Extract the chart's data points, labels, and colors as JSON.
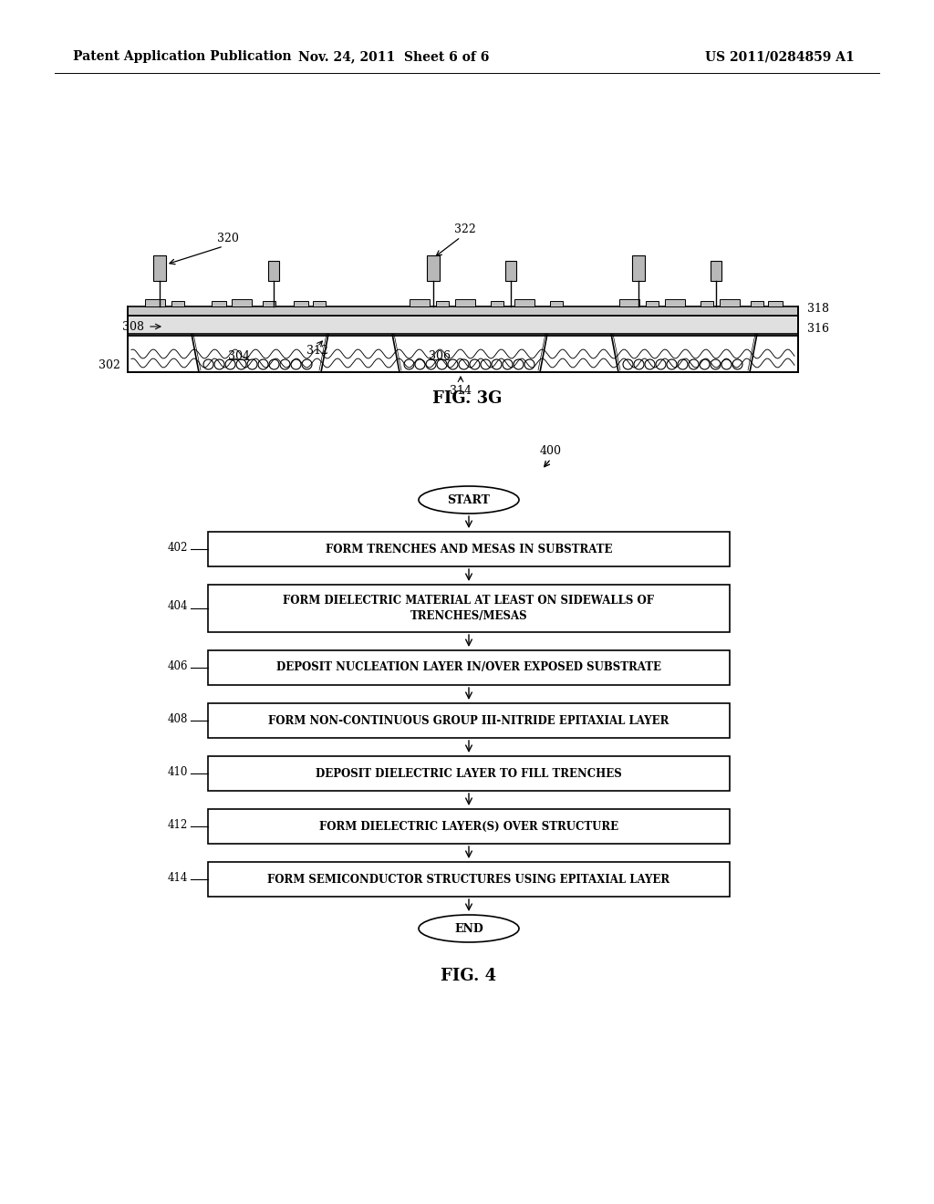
{
  "bg_color": "#ffffff",
  "header_left": "Patent Application Publication",
  "header_mid": "Nov. 24, 2011  Sheet 6 of 6",
  "header_right": "US 2011/0284859 A1",
  "fig3g_label": "FIG. 3G",
  "fig4_label": "FIG. 4",
  "flowchart_ref": "400",
  "flowchart_steps": [
    "FORM TRENCHES AND MESAS IN SUBSTRATE",
    "FORM DIELECTRIC MATERIAL AT LEAST ON SIDEWALLS OF\nTRENCHES/MESAS",
    "DEPOSIT NUCLEATION LAYER IN/OVER EXPOSED SUBSTRATE",
    "FORM NON-CONTINUOUS GROUP III-NITRIDE EPITAXIAL LAYER",
    "DEPOSIT DIELECTRIC LAYER TO FILL TRENCHES",
    "FORM DIELECTRIC LAYER(S) OVER STRUCTURE",
    "FORM SEMICONDUCTOR STRUCTURES USING EPITAXIAL LAYER"
  ],
  "step_labels": [
    "402",
    "404",
    "406",
    "408",
    "410",
    "412",
    "414"
  ],
  "start_label": "START",
  "end_label": "END"
}
